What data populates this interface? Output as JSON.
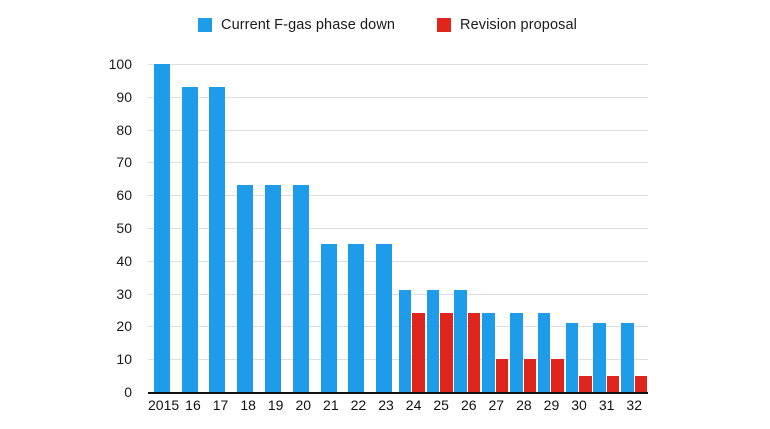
{
  "legend": {
    "items": [
      {
        "label": "Current F-gas phase down",
        "color": "#1e9cea"
      },
      {
        "label": "Revision proposal",
        "color": "#e0261c"
      }
    ]
  },
  "chart_data": {
    "type": "bar",
    "title": "",
    "xlabel": "",
    "ylabel": "",
    "categories": [
      "2015",
      "16",
      "17",
      "18",
      "19",
      "20",
      "21",
      "22",
      "23",
      "24",
      "25",
      "26",
      "27",
      "28",
      "29",
      "30",
      "31",
      "32"
    ],
    "series": [
      {
        "name": "Current F-gas phase down",
        "color": "#1e9cea",
        "values": [
          100,
          93,
          93,
          63,
          63,
          63,
          45,
          45,
          45,
          31,
          31,
          31,
          24,
          24,
          24,
          21,
          21,
          21
        ]
      },
      {
        "name": "Revision proposal",
        "color": "#e0261c",
        "values": [
          null,
          null,
          null,
          null,
          null,
          null,
          null,
          null,
          null,
          24,
          24,
          24,
          10,
          10,
          10,
          5,
          5,
          5
        ]
      }
    ],
    "ylim": [
      0,
      100
    ],
    "ytick_step": 10,
    "yticks": [
      0,
      10,
      20,
      30,
      40,
      50,
      60,
      70,
      80,
      90,
      100
    ],
    "grid": "horizontal",
    "gridline_color": "#dedede",
    "axis_color": "#111111",
    "legend_position": "top"
  }
}
